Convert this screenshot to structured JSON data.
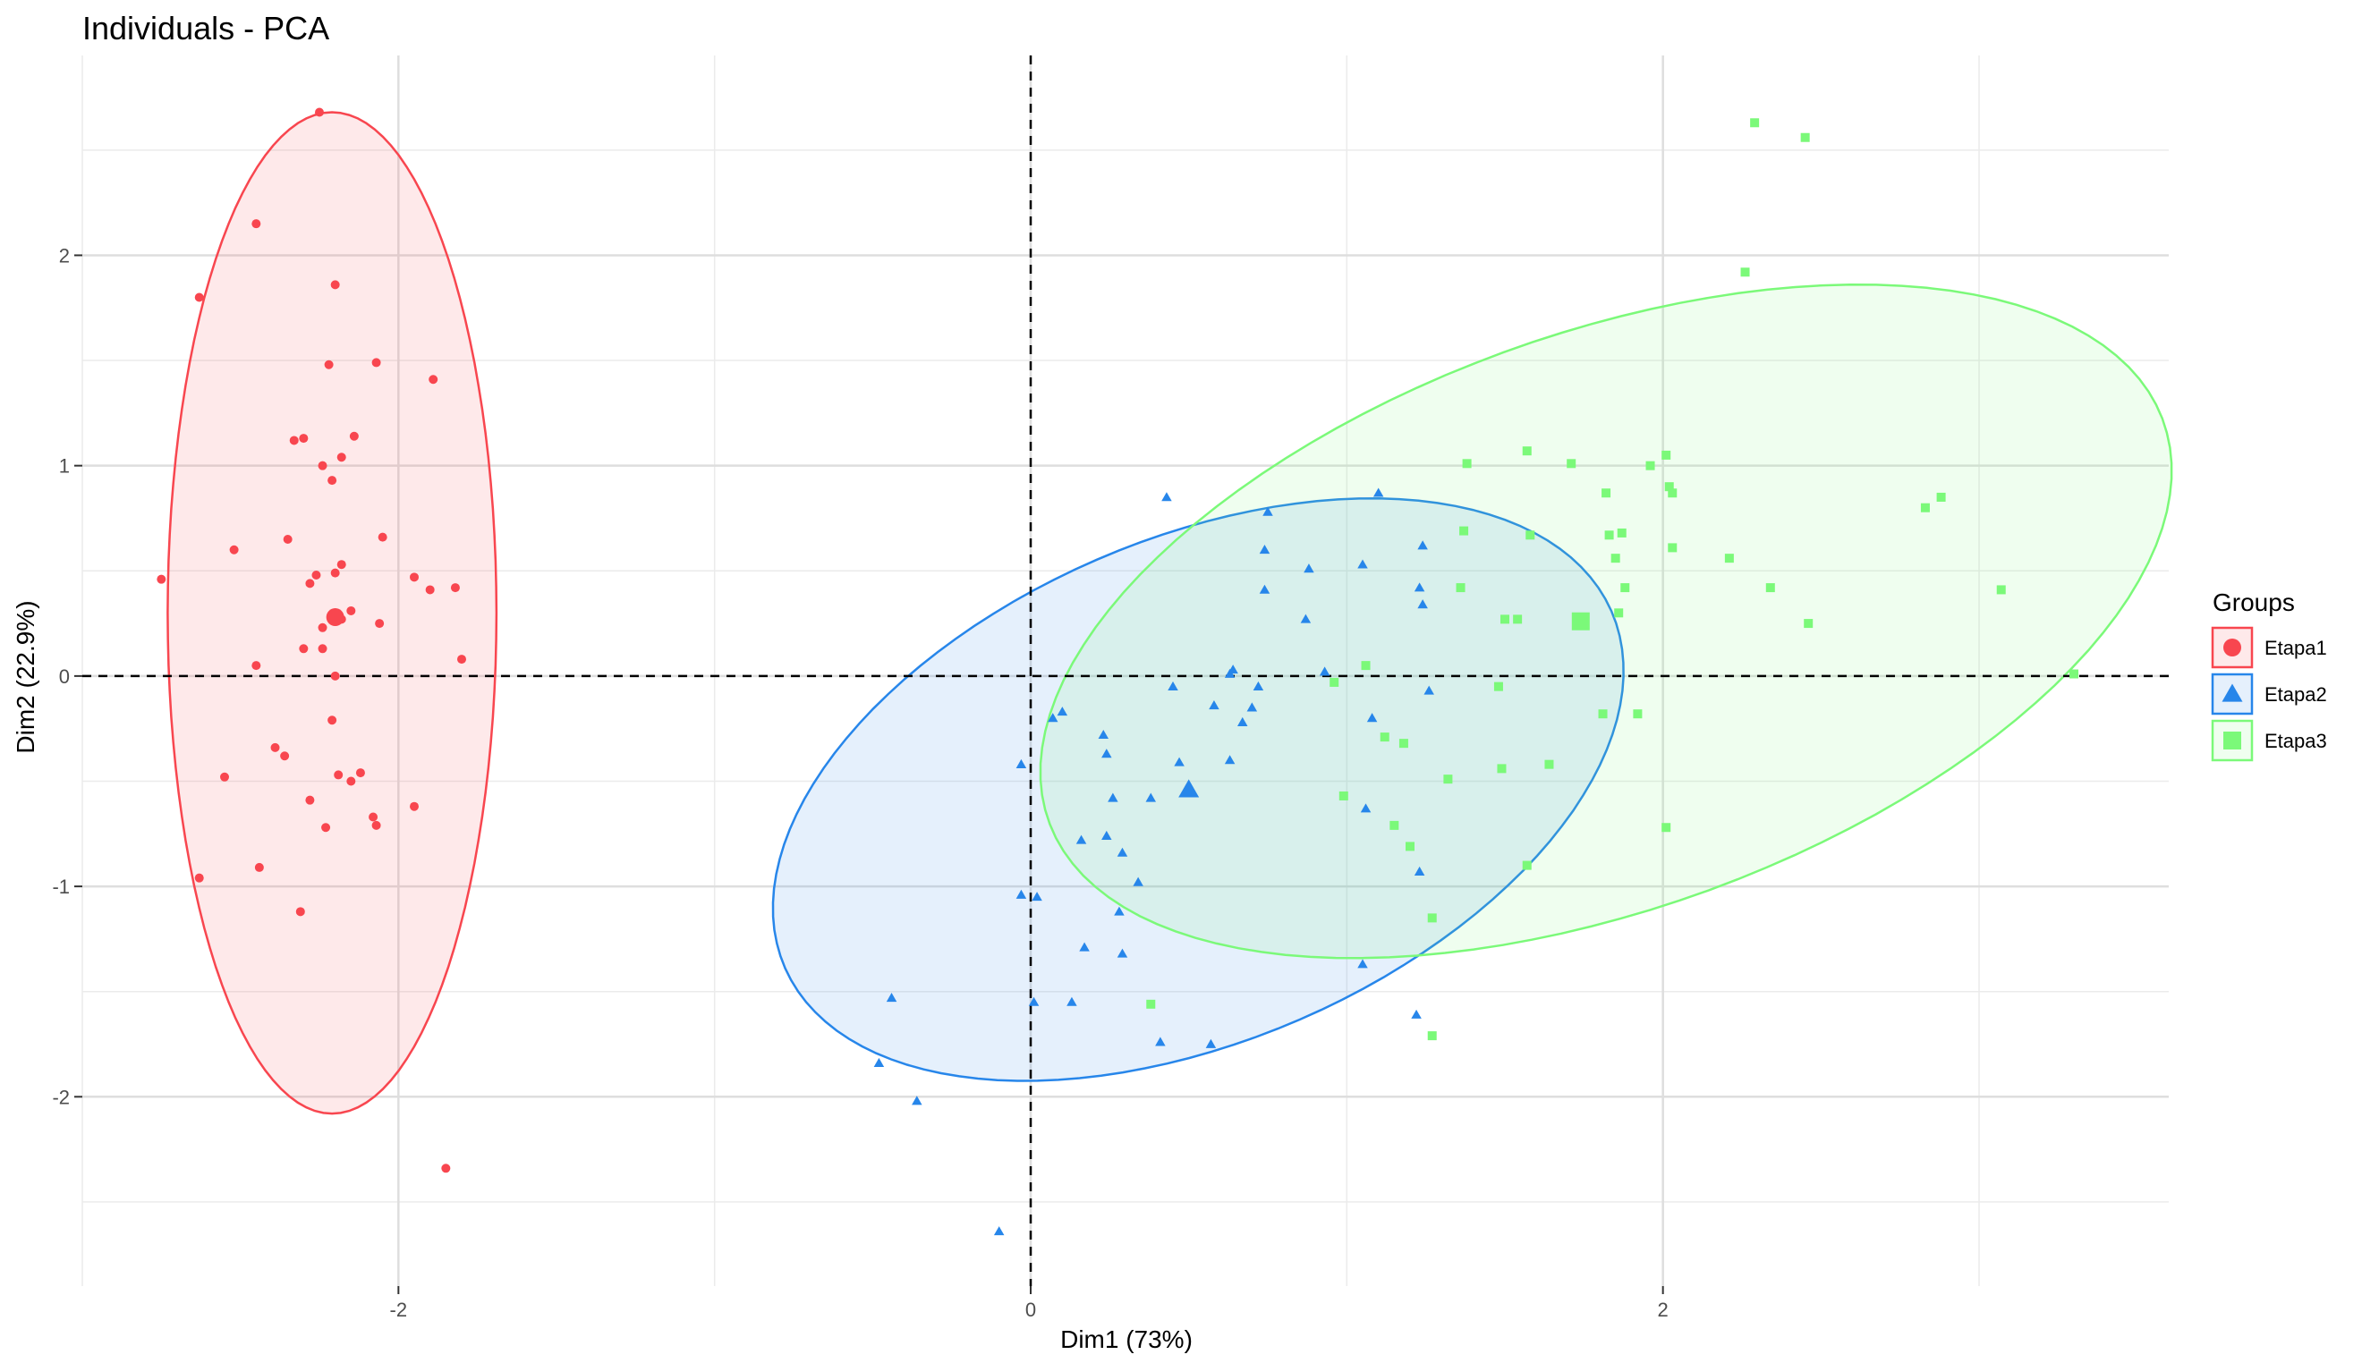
{
  "chart_data": {
    "type": "scatter",
    "title": "Individuals - PCA",
    "xlabel": "Dim1 (73%)",
    "ylabel": "Dim2 (22.9%)",
    "xlim": [
      -3.0,
      3.6
    ],
    "ylim": [
      -2.9,
      2.95
    ],
    "x_ticks": [
      -2,
      0,
      2
    ],
    "x_tick_labels": [
      "-2",
      "0",
      "2"
    ],
    "y_ticks": [
      -2,
      -1,
      0,
      1,
      2
    ],
    "y_tick_labels": [
      "-2",
      "-1",
      "0",
      "1",
      "2"
    ],
    "grid": true,
    "reference_lines": {
      "x": 0,
      "y": 0,
      "style": "dashed"
    },
    "legend": {
      "title": "Groups",
      "position": "right"
    },
    "series": [
      {
        "name": "Etapa1",
        "color": "#F8464F",
        "shape": "circle",
        "centroid": [
          -2.2,
          0.28
        ],
        "ellipse": {
          "cx": -2.21,
          "cy": 0.3,
          "rx": 0.52,
          "ry": 2.38,
          "angle": 0
        },
        "points": [
          [
            -2.25,
            2.68
          ],
          [
            -2.45,
            2.15
          ],
          [
            -2.63,
            1.8
          ],
          [
            -2.2,
            1.86
          ],
          [
            -2.22,
            1.48
          ],
          [
            -2.07,
            1.49
          ],
          [
            -1.89,
            1.41
          ],
          [
            -2.33,
            1.12
          ],
          [
            -2.3,
            1.13
          ],
          [
            -2.14,
            1.14
          ],
          [
            -2.18,
            1.04
          ],
          [
            -2.24,
            1.0
          ],
          [
            -2.21,
            0.93
          ],
          [
            -2.05,
            0.66
          ],
          [
            -2.35,
            0.65
          ],
          [
            -2.52,
            0.6
          ],
          [
            -2.18,
            0.53
          ],
          [
            -2.2,
            0.49
          ],
          [
            -2.26,
            0.48
          ],
          [
            -2.28,
            0.44
          ],
          [
            -1.95,
            0.47
          ],
          [
            -1.9,
            0.41
          ],
          [
            -1.82,
            0.42
          ],
          [
            -2.75,
            0.46
          ],
          [
            -2.15,
            0.31
          ],
          [
            -2.18,
            0.27
          ],
          [
            -2.06,
            0.25
          ],
          [
            -2.24,
            0.23
          ],
          [
            -2.24,
            0.13
          ],
          [
            -2.3,
            0.13
          ],
          [
            -2.45,
            0.05
          ],
          [
            -1.8,
            0.08
          ],
          [
            -2.2,
            0.0
          ],
          [
            -2.21,
            -0.21
          ],
          [
            -2.55,
            -0.48
          ],
          [
            -2.39,
            -0.34
          ],
          [
            -2.36,
            -0.38
          ],
          [
            -2.19,
            -0.47
          ],
          [
            -2.12,
            -0.46
          ],
          [
            -2.15,
            -0.5
          ],
          [
            -2.28,
            -0.59
          ],
          [
            -2.08,
            -0.67
          ],
          [
            -2.07,
            -0.71
          ],
          [
            -1.95,
            -0.62
          ],
          [
            -2.23,
            -0.72
          ],
          [
            -2.44,
            -0.91
          ],
          [
            -2.63,
            -0.96
          ],
          [
            -2.31,
            -1.12
          ],
          [
            -1.85,
            -2.34
          ]
        ]
      },
      {
        "name": "Etapa2",
        "color": "#2786EA",
        "shape": "triangle",
        "centroid": [
          0.5,
          -0.54
        ],
        "ellipse": {
          "cx": 0.53,
          "cy": -0.54,
          "rx": 1.62,
          "ry": 1.05,
          "angle": 47
        },
        "points": [
          [
            0.43,
            0.85
          ],
          [
            1.1,
            0.87
          ],
          [
            0.75,
            0.78
          ],
          [
            0.74,
            0.6
          ],
          [
            1.24,
            0.62
          ],
          [
            0.74,
            0.41
          ],
          [
            0.88,
            0.51
          ],
          [
            1.05,
            0.53
          ],
          [
            1.23,
            0.42
          ],
          [
            1.24,
            0.34
          ],
          [
            0.87,
            0.27
          ],
          [
            0.64,
            0.03
          ],
          [
            0.93,
            0.02
          ],
          [
            0.63,
            0.01
          ],
          [
            0.72,
            -0.05
          ],
          [
            0.45,
            -0.05
          ],
          [
            1.26,
            -0.07
          ],
          [
            0.58,
            -0.14
          ],
          [
            0.7,
            -0.15
          ],
          [
            0.1,
            -0.17
          ],
          [
            0.07,
            -0.2
          ],
          [
            1.08,
            -0.2
          ],
          [
            0.67,
            -0.22
          ],
          [
            0.23,
            -0.28
          ],
          [
            0.24,
            -0.37
          ],
          [
            0.47,
            -0.41
          ],
          [
            0.63,
            -0.4
          ],
          [
            -0.03,
            -0.42
          ],
          [
            0.26,
            -0.58
          ],
          [
            0.38,
            -0.58
          ],
          [
            0.16,
            -0.78
          ],
          [
            0.29,
            -0.84
          ],
          [
            1.06,
            -0.63
          ],
          [
            0.24,
            -0.76
          ],
          [
            1.23,
            -0.93
          ],
          [
            0.34,
            -0.98
          ],
          [
            -0.03,
            -1.04
          ],
          [
            0.02,
            -1.05
          ],
          [
            0.28,
            -1.12
          ],
          [
            0.17,
            -1.29
          ],
          [
            0.29,
            -1.32
          ],
          [
            1.05,
            -1.37
          ],
          [
            0.01,
            -1.55
          ],
          [
            0.13,
            -1.55
          ],
          [
            -0.44,
            -1.53
          ],
          [
            1.22,
            -1.61
          ],
          [
            0.41,
            -1.74
          ],
          [
            0.57,
            -1.75
          ],
          [
            -0.48,
            -1.84
          ],
          [
            -0.36,
            -2.02
          ],
          [
            -0.1,
            -2.64
          ]
        ]
      },
      {
        "name": "Etapa3",
        "color": "#7BF979",
        "shape": "square",
        "centroid": [
          1.74,
          0.26
        ],
        "ellipse": {
          "cx": 1.82,
          "cy": 0.26,
          "rx": 2.05,
          "ry": 1.25,
          "angle": 38
        },
        "points": [
          [
            2.29,
            2.63
          ],
          [
            2.45,
            2.56
          ],
          [
            2.26,
            1.92
          ],
          [
            1.57,
            1.07
          ],
          [
            2.01,
            1.05
          ],
          [
            1.38,
            1.01
          ],
          [
            1.71,
            1.01
          ],
          [
            1.96,
            1.0
          ],
          [
            2.02,
            0.9
          ],
          [
            2.03,
            0.87
          ],
          [
            1.82,
            0.87
          ],
          [
            2.88,
            0.85
          ],
          [
            2.83,
            0.8
          ],
          [
            1.37,
            0.69
          ],
          [
            1.58,
            0.67
          ],
          [
            1.87,
            0.68
          ],
          [
            1.83,
            0.67
          ],
          [
            2.03,
            0.61
          ],
          [
            1.85,
            0.56
          ],
          [
            2.21,
            0.56
          ],
          [
            1.36,
            0.42
          ],
          [
            1.88,
            0.42
          ],
          [
            2.34,
            0.42
          ],
          [
            3.07,
            0.41
          ],
          [
            1.86,
            0.3
          ],
          [
            1.5,
            0.27
          ],
          [
            1.54,
            0.27
          ],
          [
            2.46,
            0.25
          ],
          [
            1.06,
            0.05
          ],
          [
            0.96,
            -0.03
          ],
          [
            1.48,
            -0.05
          ],
          [
            1.81,
            -0.18
          ],
          [
            1.92,
            -0.18
          ],
          [
            1.12,
            -0.29
          ],
          [
            1.18,
            -0.32
          ],
          [
            1.64,
            -0.42
          ],
          [
            1.49,
            -0.44
          ],
          [
            1.32,
            -0.49
          ],
          [
            0.99,
            -0.57
          ],
          [
            1.15,
            -0.71
          ],
          [
            1.2,
            -0.81
          ],
          [
            2.01,
            -0.72
          ],
          [
            1.57,
            -0.9
          ],
          [
            1.27,
            -1.15
          ],
          [
            0.38,
            -1.56
          ],
          [
            1.27,
            -1.71
          ],
          [
            3.3,
            0.01
          ]
        ]
      }
    ]
  }
}
